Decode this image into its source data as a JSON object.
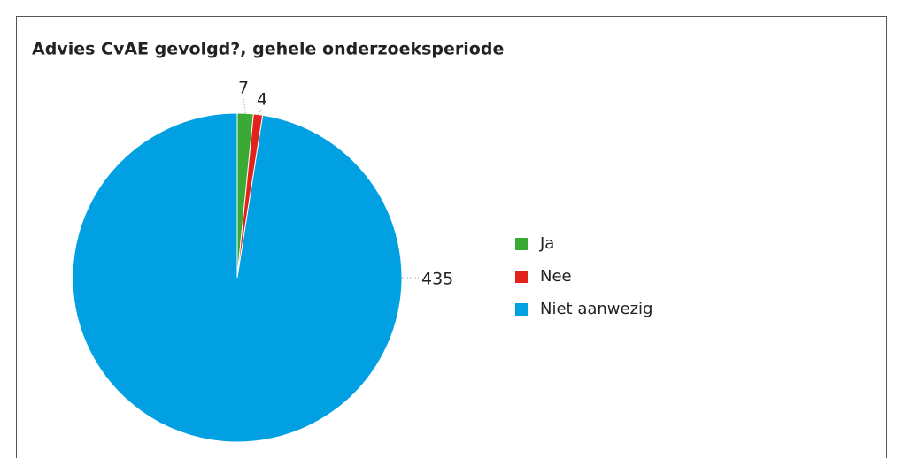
{
  "chart_data": {
    "type": "pie",
    "title": "Advies CvAE gevolgd?, gehele onderzoeksperiode",
    "categories": [
      "Ja",
      "Nee",
      "Niet aanwezig"
    ],
    "values": [
      7,
      4,
      435
    ],
    "colors": [
      "#3aaa35",
      "#e3221b",
      "#00a0e3"
    ],
    "legend": "right"
  }
}
